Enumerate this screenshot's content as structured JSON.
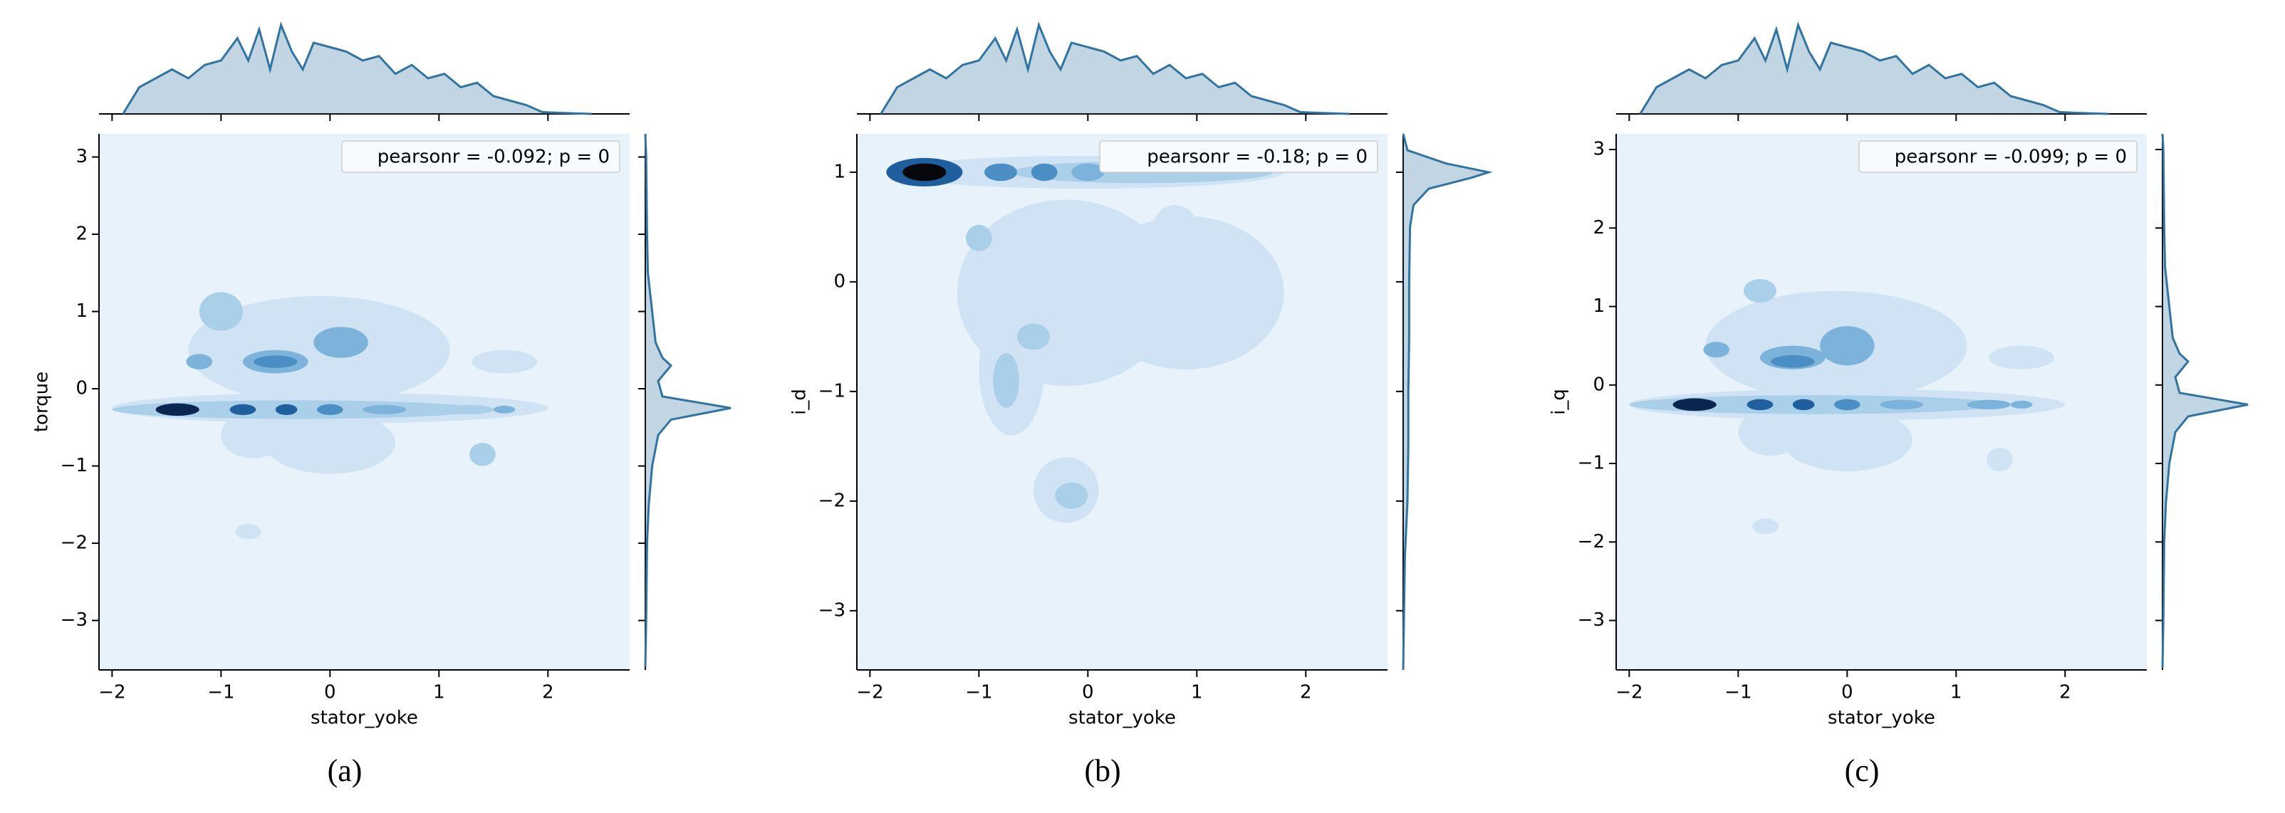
{
  "chart_data": [
    {
      "type": "kde-joint",
      "xlabel": "stator_yoke",
      "ylabel": "torque",
      "annotation": "pearsonr = -0.092; p = 0",
      "caption": "(a)",
      "xlim": [
        -2.12,
        2.75
      ],
      "ylim": [
        -3.64,
        3.3
      ],
      "xticks": [
        {
          "value": -2,
          "label": "−2"
        },
        {
          "value": -1,
          "label": "−1"
        },
        0,
        1,
        2
      ],
      "yticks": [
        {
          "value": -3,
          "label": "−3"
        },
        {
          "value": -2,
          "label": "−2"
        },
        {
          "value": -1,
          "label": "−1"
        },
        0,
        1,
        2,
        3
      ],
      "color": "#3274a1",
      "contour_colors": [
        "#e8f2fb",
        "#cfe3f4",
        "#a9cfe9",
        "#7db3db",
        "#4a8ec4",
        "#1f5f9f",
        "#0a2550",
        "#07080c"
      ],
      "contours": [
        {
          "x": -0.1,
          "y": 0.5,
          "rx": 1.2,
          "ry": 0.7,
          "level": 1
        },
        {
          "x": 0.0,
          "y": -0.7,
          "rx": 0.6,
          "ry": 0.4,
          "level": 1
        },
        {
          "x": -0.7,
          "y": -0.6,
          "rx": 0.3,
          "ry": 0.3,
          "level": 1
        },
        {
          "x": 1.6,
          "y": 0.35,
          "rx": 0.3,
          "ry": 0.15,
          "level": 1
        },
        {
          "x": -0.75,
          "y": -1.85,
          "rx": 0.12,
          "ry": 0.1,
          "level": 1
        },
        {
          "x": 1.4,
          "y": -0.85,
          "rx": 0.12,
          "ry": 0.15,
          "level": 2
        },
        {
          "x": -1.0,
          "y": 1.0,
          "rx": 0.2,
          "ry": 0.25,
          "level": 2
        },
        {
          "x": -0.5,
          "y": 0.35,
          "rx": 0.3,
          "ry": 0.15,
          "level": 3
        },
        {
          "x": -0.5,
          "y": 0.35,
          "rx": 0.2,
          "ry": 0.08,
          "level": 4
        },
        {
          "x": 0.1,
          "y": 0.6,
          "rx": 0.25,
          "ry": 0.2,
          "level": 3
        },
        {
          "x": -1.2,
          "y": 0.35,
          "rx": 0.12,
          "ry": 0.1,
          "level": 3
        },
        {
          "x": 0.0,
          "y": -0.25,
          "rx": 2.0,
          "ry": 0.2,
          "level": 1
        },
        {
          "x": -0.3,
          "y": -0.27,
          "rx": 1.7,
          "ry": 0.12,
          "level": 2
        },
        {
          "x": -1.4,
          "y": -0.27,
          "rx": 0.2,
          "ry": 0.08,
          "level": 6
        },
        {
          "x": -0.8,
          "y": -0.27,
          "rx": 0.12,
          "ry": 0.07,
          "level": 5
        },
        {
          "x": -0.4,
          "y": -0.27,
          "rx": 0.1,
          "ry": 0.07,
          "level": 5
        },
        {
          "x": 0.0,
          "y": -0.27,
          "rx": 0.12,
          "ry": 0.07,
          "level": 4
        },
        {
          "x": 0.5,
          "y": -0.27,
          "rx": 0.2,
          "ry": 0.06,
          "level": 3
        },
        {
          "x": 1.3,
          "y": -0.27,
          "rx": 0.2,
          "ry": 0.06,
          "level": 2
        },
        {
          "x": 1.6,
          "y": -0.27,
          "rx": 0.1,
          "ry": 0.05,
          "level": 3
        }
      ],
      "x_marginal": {
        "x": [
          -1.9,
          -1.75,
          -1.6,
          -1.45,
          -1.3,
          -1.15,
          -1.0,
          -0.85,
          -0.75,
          -0.65,
          -0.55,
          -0.45,
          -0.35,
          -0.25,
          -0.15,
          0,
          0.15,
          0.3,
          0.45,
          0.6,
          0.75,
          0.9,
          1.05,
          1.2,
          1.35,
          1.5,
          1.65,
          1.8,
          1.95,
          2.15,
          2.4
        ],
        "density": [
          0,
          0.3,
          0.4,
          0.5,
          0.4,
          0.55,
          0.6,
          0.85,
          0.6,
          0.95,
          0.5,
          1.0,
          0.7,
          0.5,
          0.8,
          0.75,
          0.7,
          0.6,
          0.65,
          0.45,
          0.55,
          0.4,
          0.45,
          0.3,
          0.35,
          0.2,
          0.15,
          0.1,
          0.02,
          0.01,
          0
        ]
      },
      "y_marginal": {
        "y": [
          -3.6,
          -3,
          -2,
          -1.5,
          -1,
          -0.6,
          -0.4,
          -0.25,
          -0.1,
          0.1,
          0.3,
          0.4,
          0.6,
          1,
          1.5,
          2,
          3,
          3.3
        ],
        "density": [
          0,
          0.01,
          0.02,
          0.04,
          0.08,
          0.15,
          0.3,
          1.0,
          0.2,
          0.15,
          0.3,
          0.2,
          0.12,
          0.08,
          0.03,
          0.02,
          0.01,
          0
        ]
      },
      "marginal_lim": [
        0,
        1
      ]
    },
    {
      "type": "kde-joint",
      "xlabel": "stator_yoke",
      "ylabel": "i_d",
      "annotation": "pearsonr = -0.18; p = 0",
      "caption": "(b)",
      "xlim": [
        -2.12,
        2.75
      ],
      "ylim": [
        -3.54,
        1.35
      ],
      "xticks": [
        {
          "value": -2,
          "label": "−2"
        },
        {
          "value": -1,
          "label": "−1"
        },
        0,
        1,
        2
      ],
      "yticks": [
        {
          "value": -3,
          "label": "−3"
        },
        {
          "value": -2,
          "label": "−2"
        },
        {
          "value": -1,
          "label": "−1"
        },
        0,
        1
      ],
      "color": "#3274a1",
      "contour_colors": [
        "#e8f2fb",
        "#cfe3f4",
        "#a9cfe9",
        "#7db3db",
        "#4a8ec4",
        "#1f5f9f",
        "#0a2550",
        "#07080c"
      ],
      "contours": [
        {
          "x": -0.2,
          "y": -0.1,
          "rx": 1.0,
          "ry": 0.85,
          "level": 1
        },
        {
          "x": 0.9,
          "y": -0.1,
          "rx": 0.9,
          "ry": 0.7,
          "level": 1
        },
        {
          "x": -0.7,
          "y": -0.8,
          "rx": 0.3,
          "ry": 0.6,
          "level": 1
        },
        {
          "x": -0.2,
          "y": -1.9,
          "rx": 0.3,
          "ry": 0.3,
          "level": 1
        },
        {
          "x": 0.8,
          "y": 0.5,
          "rx": 0.2,
          "ry": 0.2,
          "level": 1
        },
        {
          "x": -0.75,
          "y": -0.9,
          "rx": 0.12,
          "ry": 0.25,
          "level": 2
        },
        {
          "x": -0.5,
          "y": -0.5,
          "rx": 0.15,
          "ry": 0.12,
          "level": 2
        },
        {
          "x": -1.0,
          "y": 0.4,
          "rx": 0.12,
          "ry": 0.12,
          "level": 2
        },
        {
          "x": -0.15,
          "y": -1.95,
          "rx": 0.15,
          "ry": 0.12,
          "level": 2
        },
        {
          "x": 0.0,
          "y": 1.0,
          "rx": 1.8,
          "ry": 0.15,
          "level": 1
        },
        {
          "x": 0.5,
          "y": 1.0,
          "rx": 1.2,
          "ry": 0.1,
          "level": 2
        },
        {
          "x": -0.8,
          "y": 1.0,
          "rx": 0.15,
          "ry": 0.08,
          "level": 4
        },
        {
          "x": -0.4,
          "y": 1.0,
          "rx": 0.12,
          "ry": 0.08,
          "level": 4
        },
        {
          "x": 0.0,
          "y": 1.0,
          "rx": 0.15,
          "ry": 0.08,
          "level": 3
        },
        {
          "x": -1.5,
          "y": 1.0,
          "rx": 0.35,
          "ry": 0.13,
          "level": 5
        },
        {
          "x": -1.5,
          "y": 1.0,
          "rx": 0.2,
          "ry": 0.08,
          "level": 7
        }
      ],
      "x_marginal": {
        "x": [
          -1.9,
          -1.75,
          -1.6,
          -1.45,
          -1.3,
          -1.15,
          -1.0,
          -0.85,
          -0.75,
          -0.65,
          -0.55,
          -0.45,
          -0.35,
          -0.25,
          -0.15,
          0,
          0.15,
          0.3,
          0.45,
          0.6,
          0.75,
          0.9,
          1.05,
          1.2,
          1.35,
          1.5,
          1.65,
          1.8,
          1.95,
          2.15,
          2.4
        ],
        "density": [
          0,
          0.3,
          0.4,
          0.5,
          0.4,
          0.55,
          0.6,
          0.85,
          0.6,
          0.95,
          0.5,
          1.0,
          0.7,
          0.5,
          0.8,
          0.75,
          0.7,
          0.6,
          0.65,
          0.45,
          0.55,
          0.4,
          0.45,
          0.3,
          0.35,
          0.2,
          0.15,
          0.1,
          0.02,
          0.01,
          0
        ]
      },
      "y_marginal": {
        "y": [
          -3.54,
          -3,
          -2.5,
          -2,
          -1.5,
          -1,
          -0.5,
          0,
          0.5,
          0.7,
          0.85,
          0.95,
          1.0,
          1.08,
          1.2,
          1.35
        ],
        "density": [
          0,
          0.01,
          0.02,
          0.05,
          0.06,
          0.06,
          0.07,
          0.07,
          0.08,
          0.12,
          0.3,
          0.8,
          1.0,
          0.5,
          0.05,
          0
        ]
      },
      "marginal_lim": [
        0,
        1
      ]
    },
    {
      "type": "kde-joint",
      "xlabel": "stator_yoke",
      "ylabel": "i_q",
      "annotation": "pearsonr = -0.099; p = 0",
      "caption": "(c)",
      "xlim": [
        -2.12,
        2.75
      ],
      "ylim": [
        -3.63,
        3.2
      ],
      "xticks": [
        {
          "value": -2,
          "label": "−2"
        },
        {
          "value": -1,
          "label": "−1"
        },
        0,
        1,
        2
      ],
      "yticks": [
        {
          "value": -3,
          "label": "−3"
        },
        {
          "value": -2,
          "label": "−2"
        },
        {
          "value": -1,
          "label": "−1"
        },
        0,
        1,
        2,
        3
      ],
      "color": "#3274a1",
      "contour_colors": [
        "#e8f2fb",
        "#cfe3f4",
        "#a9cfe9",
        "#7db3db",
        "#4a8ec4",
        "#1f5f9f",
        "#0a2550",
        "#07080c"
      ],
      "contours": [
        {
          "x": -0.1,
          "y": 0.5,
          "rx": 1.2,
          "ry": 0.7,
          "level": 1
        },
        {
          "x": 0.0,
          "y": -0.7,
          "rx": 0.6,
          "ry": 0.4,
          "level": 1
        },
        {
          "x": -0.7,
          "y": -0.6,
          "rx": 0.3,
          "ry": 0.3,
          "level": 1
        },
        {
          "x": 1.6,
          "y": 0.35,
          "rx": 0.3,
          "ry": 0.15,
          "level": 1
        },
        {
          "x": -0.75,
          "y": -1.8,
          "rx": 0.12,
          "ry": 0.1,
          "level": 1
        },
        {
          "x": 1.4,
          "y": -0.95,
          "rx": 0.12,
          "ry": 0.15,
          "level": 1
        },
        {
          "x": -0.8,
          "y": 1.2,
          "rx": 0.15,
          "ry": 0.15,
          "level": 2
        },
        {
          "x": -0.5,
          "y": 0.35,
          "rx": 0.3,
          "ry": 0.15,
          "level": 3
        },
        {
          "x": -0.5,
          "y": 0.3,
          "rx": 0.2,
          "ry": 0.08,
          "level": 4
        },
        {
          "x": 0.0,
          "y": 0.5,
          "rx": 0.25,
          "ry": 0.25,
          "level": 3
        },
        {
          "x": -1.2,
          "y": 0.45,
          "rx": 0.12,
          "ry": 0.1,
          "level": 3
        },
        {
          "x": 0.0,
          "y": -0.25,
          "rx": 2.0,
          "ry": 0.2,
          "level": 1
        },
        {
          "x": -0.3,
          "y": -0.25,
          "rx": 1.7,
          "ry": 0.12,
          "level": 2
        },
        {
          "x": -1.4,
          "y": -0.25,
          "rx": 0.2,
          "ry": 0.08,
          "level": 6
        },
        {
          "x": -0.8,
          "y": -0.25,
          "rx": 0.12,
          "ry": 0.07,
          "level": 5
        },
        {
          "x": -0.4,
          "y": -0.25,
          "rx": 0.1,
          "ry": 0.07,
          "level": 5
        },
        {
          "x": 0.0,
          "y": -0.25,
          "rx": 0.12,
          "ry": 0.07,
          "level": 4
        },
        {
          "x": 0.5,
          "y": -0.25,
          "rx": 0.2,
          "ry": 0.06,
          "level": 3
        },
        {
          "x": 1.3,
          "y": -0.25,
          "rx": 0.2,
          "ry": 0.06,
          "level": 3
        },
        {
          "x": 1.6,
          "y": -0.25,
          "rx": 0.1,
          "ry": 0.05,
          "level": 3
        }
      ],
      "x_marginal": {
        "x": [
          -1.9,
          -1.75,
          -1.6,
          -1.45,
          -1.3,
          -1.15,
          -1.0,
          -0.85,
          -0.75,
          -0.65,
          -0.55,
          -0.45,
          -0.35,
          -0.25,
          -0.15,
          0,
          0.15,
          0.3,
          0.45,
          0.6,
          0.75,
          0.9,
          1.05,
          1.2,
          1.35,
          1.5,
          1.65,
          1.8,
          1.95,
          2.15,
          2.4
        ],
        "density": [
          0,
          0.3,
          0.4,
          0.5,
          0.4,
          0.55,
          0.6,
          0.85,
          0.6,
          0.95,
          0.5,
          1.0,
          0.7,
          0.5,
          0.8,
          0.75,
          0.7,
          0.6,
          0.65,
          0.45,
          0.55,
          0.4,
          0.45,
          0.3,
          0.35,
          0.2,
          0.15,
          0.1,
          0.02,
          0.01,
          0
        ]
      },
      "y_marginal": {
        "y": [
          -3.6,
          -3,
          -2,
          -1.5,
          -1,
          -0.6,
          -0.4,
          -0.25,
          -0.1,
          0.1,
          0.3,
          0.4,
          0.6,
          1,
          1.5,
          2,
          3,
          3.2
        ],
        "density": [
          0,
          0.01,
          0.02,
          0.04,
          0.08,
          0.15,
          0.3,
          1.0,
          0.2,
          0.15,
          0.3,
          0.2,
          0.12,
          0.08,
          0.03,
          0.02,
          0.01,
          0
        ]
      },
      "marginal_lim": [
        0,
        1
      ]
    }
  ]
}
